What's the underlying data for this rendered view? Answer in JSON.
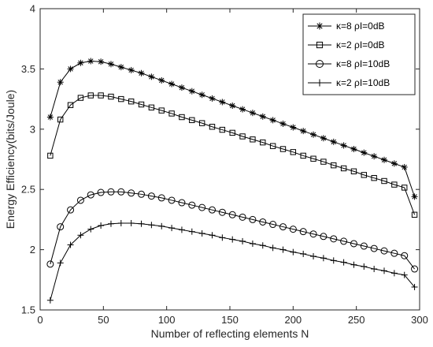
{
  "chart_data": {
    "type": "line",
    "xlabel": "Number of reflecting elements  N",
    "ylabel": "Energy Efficiency(bits/Joule)",
    "xlim": [
      0,
      300
    ],
    "ylim": [
      1.5,
      4
    ],
    "xticks": [
      0,
      50,
      100,
      150,
      200,
      250,
      300
    ],
    "yticks": [
      1.5,
      2,
      2.5,
      3,
      3.5,
      4
    ],
    "grid": false,
    "legend_position": "top-right",
    "x": [
      8,
      16,
      24,
      32,
      40,
      48,
      56,
      64,
      72,
      80,
      88,
      96,
      104,
      112,
      120,
      128,
      136,
      144,
      152,
      160,
      168,
      176,
      184,
      192,
      200,
      208,
      216,
      224,
      232,
      240,
      248,
      256,
      264,
      272,
      280,
      288,
      296
    ],
    "series": [
      {
        "name": "κ=8 ρI=0dB",
        "marker": "asterisk",
        "values": [
          3.1,
          3.39,
          3.5,
          3.55,
          3.565,
          3.56,
          3.54,
          3.515,
          3.49,
          3.465,
          3.435,
          3.405,
          3.375,
          3.345,
          3.315,
          3.285,
          3.255,
          3.225,
          3.195,
          3.165,
          3.135,
          3.105,
          3.075,
          3.045,
          3.015,
          2.985,
          2.955,
          2.925,
          2.895,
          2.865,
          2.835,
          2.805,
          2.775,
          2.745,
          2.715,
          2.685,
          2.44
        ]
      },
      {
        "name": "κ=2 ρI=0dB",
        "marker": "square",
        "values": [
          2.78,
          3.08,
          3.2,
          3.26,
          3.28,
          3.28,
          3.27,
          3.25,
          3.23,
          3.205,
          3.18,
          3.155,
          3.13,
          3.1,
          3.075,
          3.05,
          3.02,
          2.995,
          2.97,
          2.94,
          2.915,
          2.89,
          2.86,
          2.835,
          2.81,
          2.78,
          2.755,
          2.73,
          2.7,
          2.675,
          2.65,
          2.62,
          2.595,
          2.57,
          2.54,
          2.515,
          2.29
        ]
      },
      {
        "name": "κ=8 ρI=10dB",
        "marker": "circle",
        "values": [
          1.88,
          2.19,
          2.33,
          2.41,
          2.455,
          2.475,
          2.48,
          2.48,
          2.47,
          2.46,
          2.445,
          2.43,
          2.41,
          2.39,
          2.37,
          2.35,
          2.33,
          2.31,
          2.29,
          2.27,
          2.25,
          2.23,
          2.21,
          2.19,
          2.17,
          2.15,
          2.13,
          2.11,
          2.09,
          2.07,
          2.05,
          2.03,
          2.01,
          1.99,
          1.97,
          1.95,
          1.84
        ]
      },
      {
        "name": "κ=2 ρI=10dB",
        "marker": "plus",
        "values": [
          1.58,
          1.89,
          2.04,
          2.12,
          2.17,
          2.2,
          2.215,
          2.22,
          2.22,
          2.215,
          2.205,
          2.195,
          2.18,
          2.165,
          2.15,
          2.135,
          2.12,
          2.1,
          2.085,
          2.07,
          2.05,
          2.035,
          2.015,
          2.0,
          1.98,
          1.965,
          1.945,
          1.93,
          1.91,
          1.895,
          1.875,
          1.86,
          1.84,
          1.825,
          1.805,
          1.79,
          1.69
        ]
      }
    ]
  }
}
